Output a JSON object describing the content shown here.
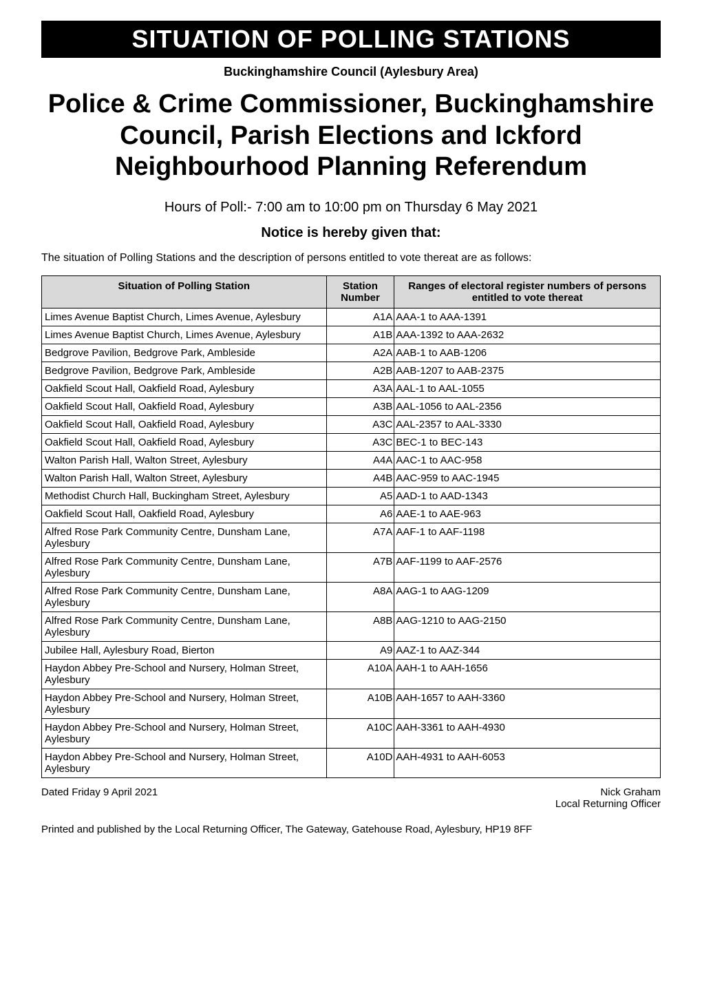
{
  "banner": {
    "title": "SITUATION OF POLLING STATIONS"
  },
  "subtitle": "Buckinghamshire Council (Aylesbury Area)",
  "mainTitle": "Police & Crime Commissioner, Buckinghamshire Council, Parish Elections and Ickford Neighbourhood Planning Referendum",
  "hours": "Hours of Poll:- 7:00 am to 10:00 pm on Thursday 6 May 2021",
  "notice": "Notice is hereby given that:",
  "description": "The situation of Polling Stations and the description of persons entitled to vote thereat are as follows:",
  "table": {
    "headers": {
      "col1": "Situation of Polling Station",
      "col2": "Station Number",
      "col3": "Ranges of electoral register numbers of persons entitled to vote thereat"
    },
    "rows": [
      {
        "location": "Limes Avenue Baptist Church, Limes Avenue, Aylesbury",
        "station": "A1A",
        "range": "AAA-1 to AAA-1391"
      },
      {
        "location": "Limes Avenue Baptist Church, Limes Avenue, Aylesbury",
        "station": "A1B",
        "range": "AAA-1392 to AAA-2632"
      },
      {
        "location": "Bedgrove Pavilion, Bedgrove Park, Ambleside",
        "station": "A2A",
        "range": "AAB-1 to AAB-1206"
      },
      {
        "location": "Bedgrove Pavilion, Bedgrove Park, Ambleside",
        "station": "A2B",
        "range": "AAB-1207 to AAB-2375"
      },
      {
        "location": "Oakfield Scout Hall, Oakfield Road, Aylesbury",
        "station": "A3A",
        "range": "AAL-1 to AAL-1055"
      },
      {
        "location": "Oakfield Scout Hall, Oakfield Road, Aylesbury",
        "station": "A3B",
        "range": "AAL-1056 to AAL-2356"
      },
      {
        "location": "Oakfield Scout Hall, Oakfield Road, Aylesbury",
        "station": "A3C",
        "range": "AAL-2357 to AAL-3330"
      },
      {
        "location": "Oakfield Scout Hall, Oakfield Road, Aylesbury",
        "station": "A3C",
        "range": "BEC-1 to BEC-143"
      },
      {
        "location": "Walton Parish Hall, Walton Street, Aylesbury",
        "station": "A4A",
        "range": "AAC-1 to AAC-958"
      },
      {
        "location": "Walton Parish Hall, Walton Street, Aylesbury",
        "station": "A4B",
        "range": "AAC-959 to AAC-1945"
      },
      {
        "location": "Methodist Church Hall, Buckingham Street, Aylesbury",
        "station": "A5",
        "range": "AAD-1 to AAD-1343"
      },
      {
        "location": "Oakfield Scout Hall, Oakfield Road, Aylesbury",
        "station": "A6",
        "range": "AAE-1 to AAE-963"
      },
      {
        "location": "Alfred Rose Park Community Centre, Dunsham Lane, Aylesbury",
        "station": "A7A",
        "range": "AAF-1 to AAF-1198"
      },
      {
        "location": "Alfred Rose Park Community Centre, Dunsham Lane, Aylesbury",
        "station": "A7B",
        "range": "AAF-1199 to AAF-2576"
      },
      {
        "location": "Alfred Rose Park Community Centre, Dunsham Lane, Aylesbury",
        "station": "A8A",
        "range": "AAG-1 to AAG-1209"
      },
      {
        "location": "Alfred Rose Park Community Centre, Dunsham Lane, Aylesbury",
        "station": "A8B",
        "range": "AAG-1210 to AAG-2150"
      },
      {
        "location": "Jubilee Hall, Aylesbury Road, Bierton",
        "station": "A9",
        "range": "AAZ-1 to AAZ-344"
      },
      {
        "location": "Haydon Abbey Pre-School and Nursery, Holman Street, Aylesbury",
        "station": "A10A",
        "range": "AAH-1 to AAH-1656"
      },
      {
        "location": "Haydon Abbey Pre-School and Nursery, Holman Street, Aylesbury",
        "station": "A10B",
        "range": "AAH-1657 to AAH-3360"
      },
      {
        "location": "Haydon Abbey Pre-School and Nursery, Holman Street, Aylesbury",
        "station": "A10C",
        "range": "AAH-3361 to AAH-4930"
      },
      {
        "location": "Haydon Abbey Pre-School and Nursery, Holman Street, Aylesbury",
        "station": "A10D",
        "range": "AAH-4931 to AAH-6053"
      }
    ]
  },
  "footer": {
    "dated": "Dated Friday 9 April 2021",
    "officer": "Nick Graham",
    "title": "Local Returning Officer",
    "printNote": "Printed and published by the Local Returning Officer, The Gateway, Gatehouse Road, Aylesbury, HP19 8FF"
  },
  "styles": {
    "bannerBg": "#000000",
    "bannerText": "#ffffff",
    "headerBg": "#d9d9d9",
    "borderColor": "#000000",
    "bodyBg": "#ffffff"
  }
}
